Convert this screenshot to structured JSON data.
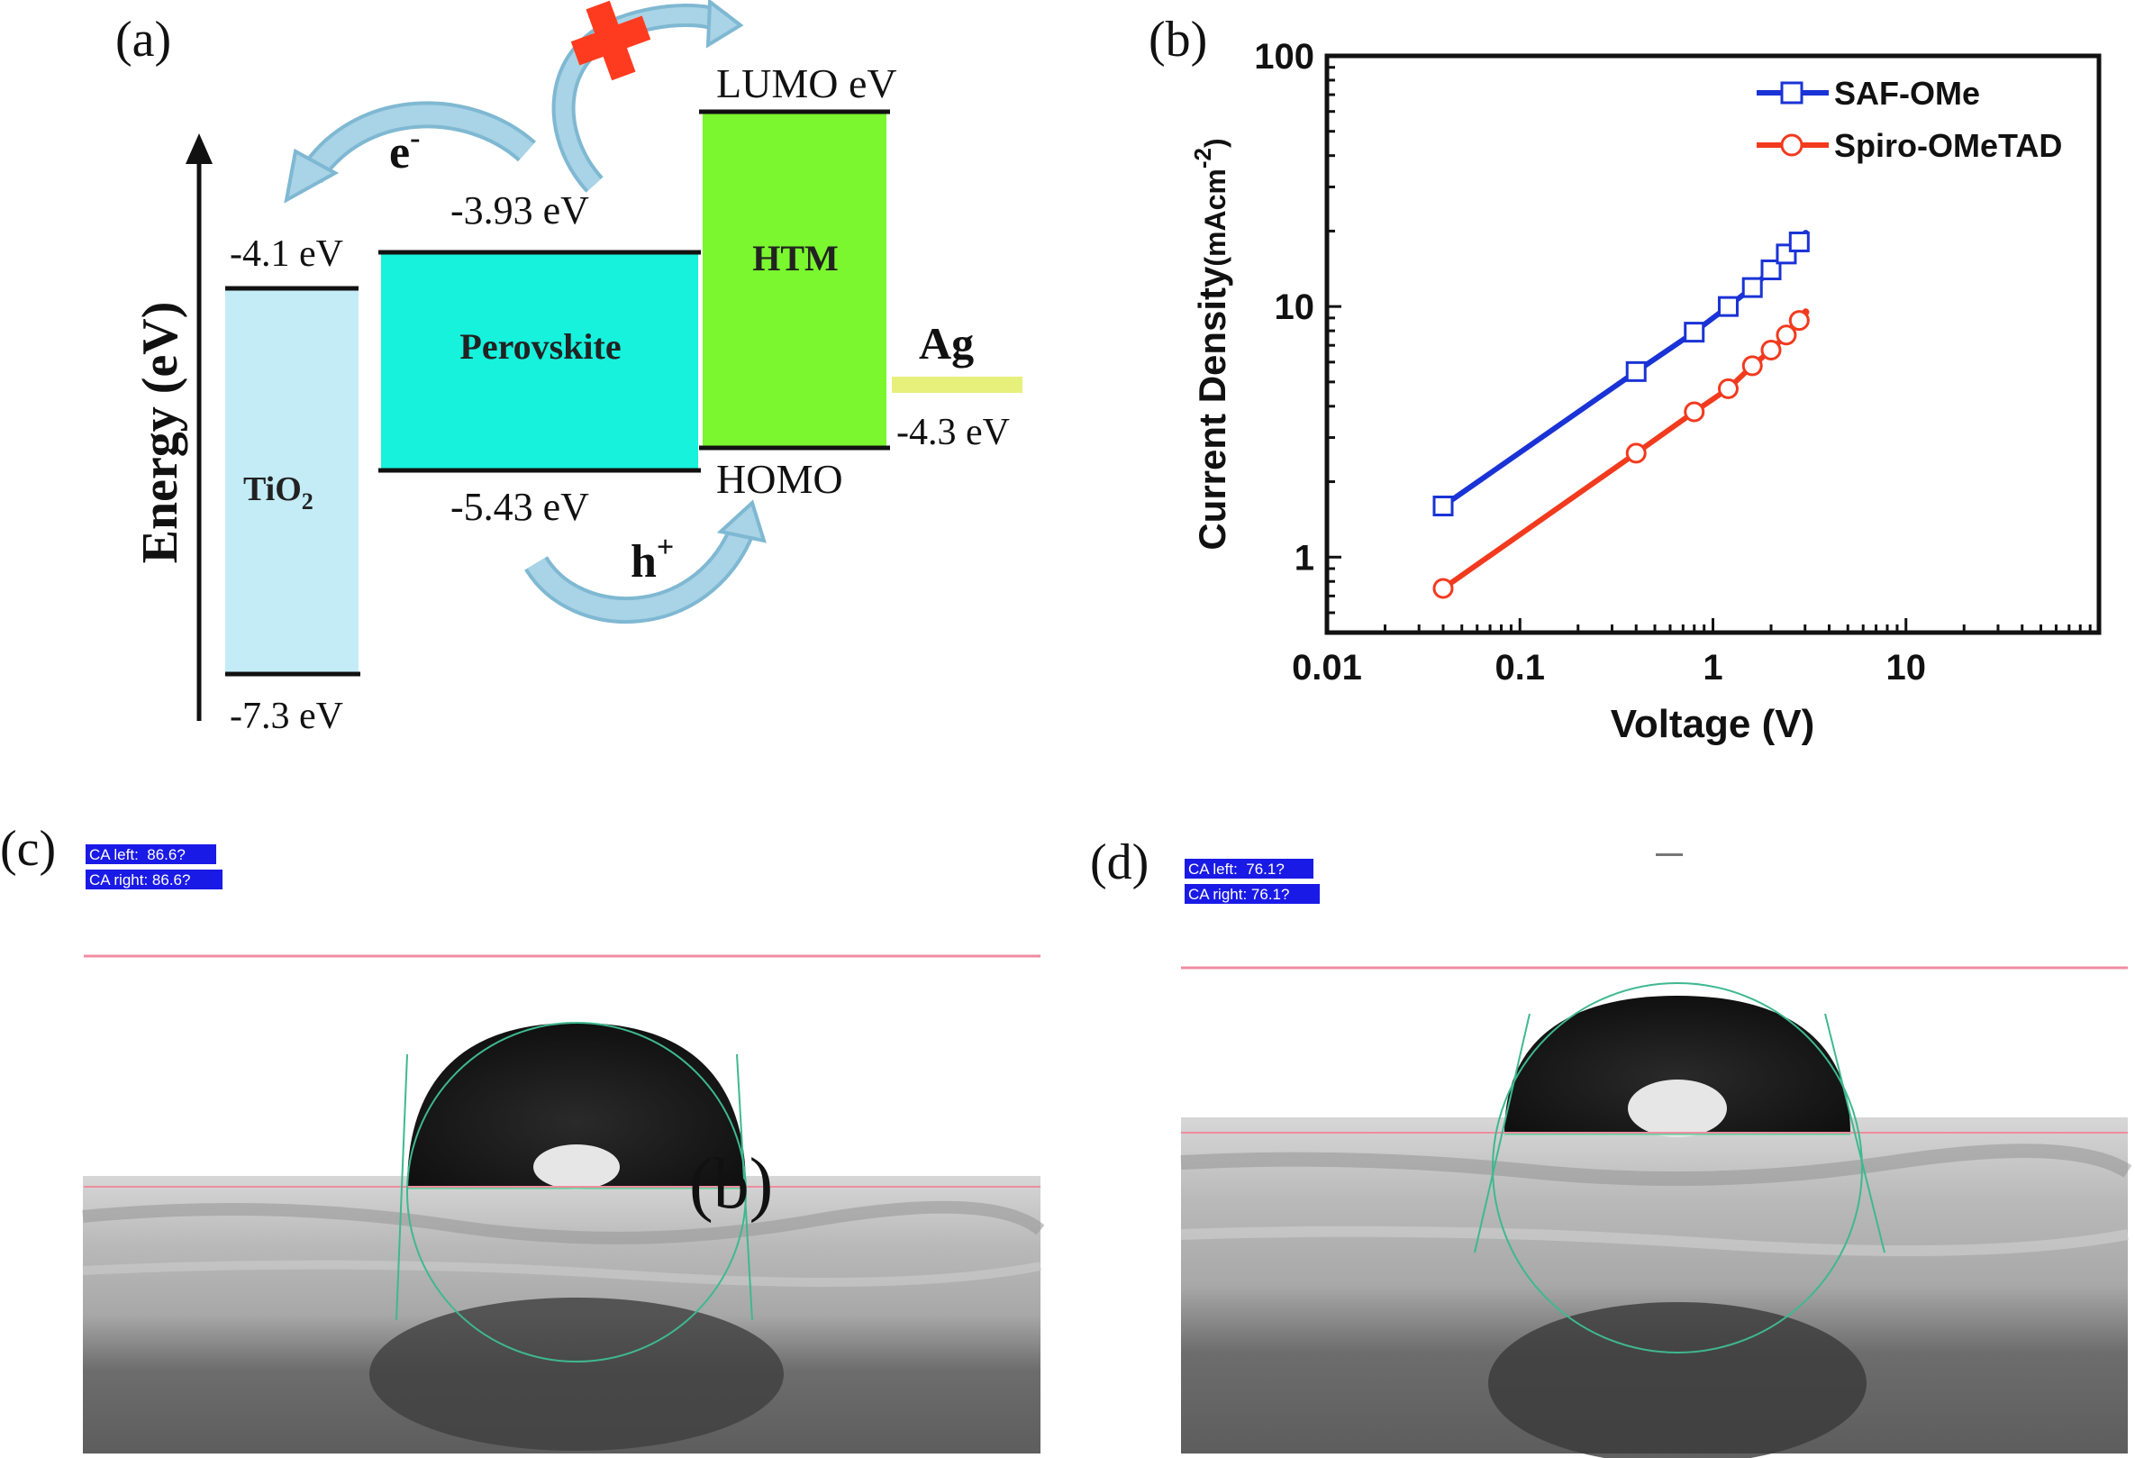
{
  "panel_a": {
    "label": "(a)",
    "axis_label": "Energy (eV)",
    "tio2": {
      "name_main": "TiO",
      "name_sub": "2",
      "top_level": "-4.1 eV",
      "bottom_level": "-7.3 eV"
    },
    "perovskite": {
      "name": "Perovskite",
      "top_level": "-3.93 eV",
      "bottom_level": "-5.43 eV"
    },
    "htm": {
      "name": "HTM",
      "top_level": "LUMO eV",
      "bottom_level": "HOMO"
    },
    "ag": {
      "name": "Ag",
      "level": "-4.3 eV"
    },
    "electron": {
      "main": "e",
      "sup": "-"
    },
    "hole": {
      "main": "h",
      "sup": "+"
    },
    "colors": {
      "tio2": "#c3ecf7",
      "perovskite": "#16f2dc",
      "htm": "#7af72e",
      "ag": "#e8f07c",
      "arrow": "#a9d3e6",
      "cross": "#ff3b1f"
    }
  },
  "panel_b": {
    "label": "(b)"
  },
  "panel_c": {
    "label": "(c)",
    "ca_left": "CA left:  86.6?",
    "ca_right": "CA right: 86.6?",
    "overlay_letter": "(b)"
  },
  "panel_d": {
    "label": "(d)",
    "ca_left": "CA left:  76.1?",
    "ca_right": "CA right: 76.1?"
  },
  "chart_data": {
    "type": "line",
    "xlabel": "Voltage (V)",
    "ylabel_main": "Current Density",
    "ylabel_unit": "(mAcm",
    "ylabel_exp": "-2",
    "ylabel_close": ")",
    "xscale": "log",
    "yscale": "log",
    "xlim": [
      0.01,
      100
    ],
    "ylim": [
      0.5,
      100
    ],
    "xticks": [
      {
        "v": 0.01,
        "label": "0.01"
      },
      {
        "v": 0.1,
        "label": "0.1"
      },
      {
        "v": 1,
        "label": "1"
      },
      {
        "v": 10,
        "label": "10"
      }
    ],
    "yticks": [
      {
        "v": 1,
        "label": "1"
      },
      {
        "v": 10,
        "label": "10"
      },
      {
        "v": 100,
        "label": "100"
      }
    ],
    "legend_position": "top-right",
    "series": [
      {
        "name": "SAF-OMe",
        "color": "#1a33d6",
        "marker": "square",
        "x": [
          0.04,
          0.4,
          0.8,
          1.2,
          1.6,
          2.0,
          2.4,
          2.8
        ],
        "y": [
          1.6,
          5.5,
          7.9,
          10.0,
          11.9,
          14.0,
          16.2,
          18.1
        ]
      },
      {
        "name": "Spiro-OMeTAD",
        "color": "#f23a1e",
        "marker": "circle",
        "x": [
          0.04,
          0.4,
          0.8,
          1.2,
          1.6,
          2.0,
          2.4,
          2.8
        ],
        "y": [
          0.75,
          2.6,
          3.8,
          4.7,
          5.8,
          6.7,
          7.7,
          8.8
        ]
      }
    ]
  }
}
